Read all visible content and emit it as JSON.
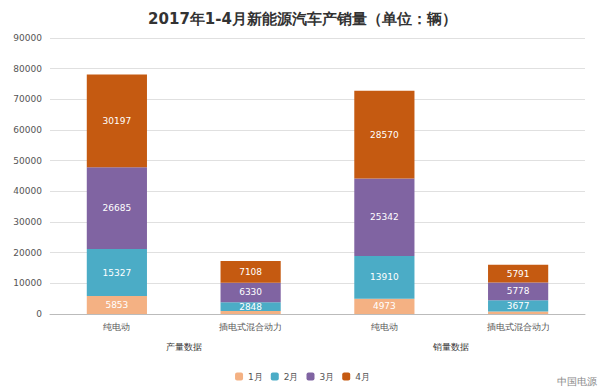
{
  "chart_data": {
    "type": "bar",
    "title": "2017年1-4月新能源汽车产销量（单位：辆）",
    "categories": [
      "纯电动",
      "插电式混合动力",
      "纯电动",
      "插电式混合动力"
    ],
    "category_groups": [
      "产量数据",
      "产量数据",
      "销量数据",
      "销量数据"
    ],
    "series": [
      {
        "name": "1月",
        "color": "#f4b183",
        "values": [
          5853,
          1000,
          4973,
          800
        ],
        "value_labels": [
          "5853",
          null,
          "4973",
          null
        ]
      },
      {
        "name": "2月",
        "color": "#4bacc6",
        "values": [
          15327,
          2848,
          13910,
          3677
        ]
      },
      {
        "name": "3月",
        "color": "#8064a2",
        "values": [
          26685,
          6330,
          25342,
          5778
        ]
      },
      {
        "name": "4月",
        "color": "#c55a11",
        "values": [
          30197,
          7108,
          28570,
          5791
        ]
      }
    ],
    "ylim": [
      0,
      90000
    ],
    "yticks": [
      0,
      10000,
      20000,
      30000,
      40000,
      50000,
      60000,
      70000,
      80000,
      90000
    ],
    "grid": true,
    "stacked": true,
    "data_labels": true,
    "legend": "bottom",
    "annotation": "中国电源"
  }
}
